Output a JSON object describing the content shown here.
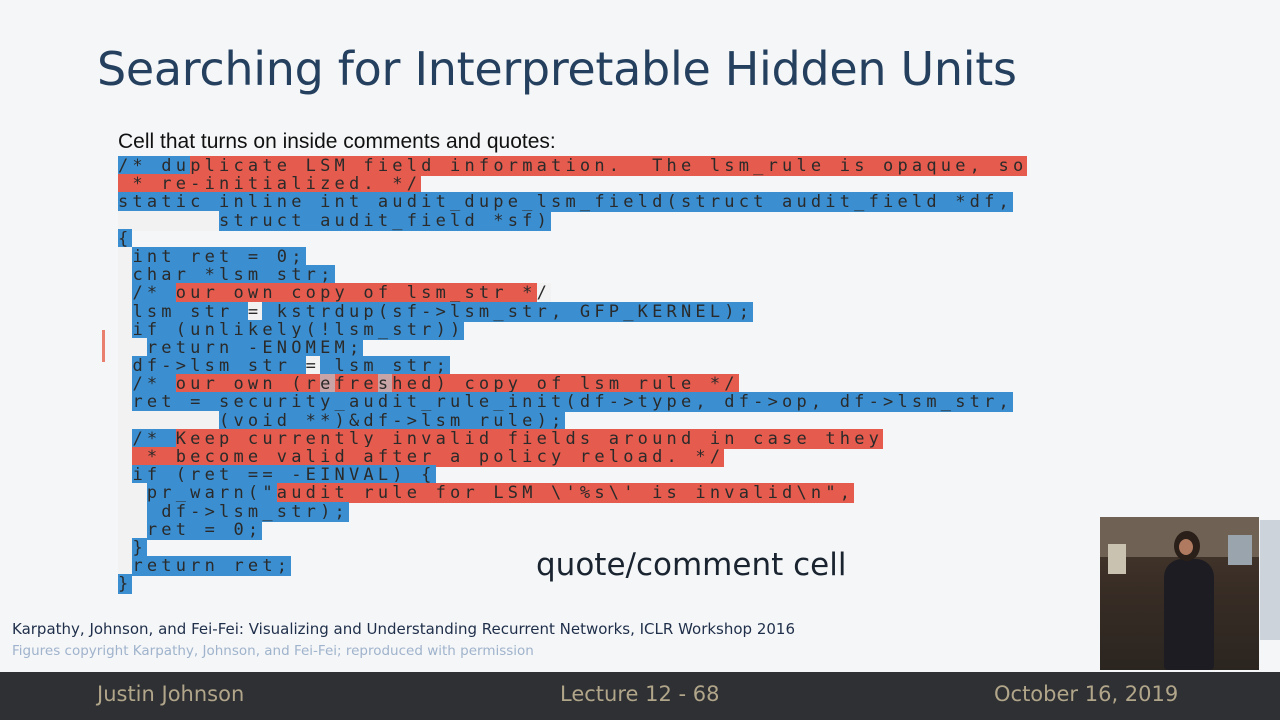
{
  "slide": {
    "title": "Searching for Interpretable Hidden Units",
    "caption": "Cell that turns on inside comments and quotes:",
    "cell_label": "quote/comment cell",
    "citation": "Karpathy, Johnson, and Fei-Fei: Visualizing and Understanding Recurrent Networks, ICLR Workshop 2016",
    "copyright": "Figures copyright Karpathy, Johnson, and Fei-Fei; reproduced with permission"
  },
  "code_lines": [
    [
      {
        "t": "/* du",
        "c": "b"
      },
      {
        "t": "plicate LSM field information.  The lsm_rule is opaque, so",
        "c": "r"
      }
    ],
    [
      {
        "t": " * re-initialized. */",
        "c": "r"
      }
    ],
    [
      {
        "t": "static inline int audit_dupe_lsm_field(struct audit_field *df,",
        "c": "b"
      }
    ],
    [
      {
        "t": "       ",
        "c": "w"
      },
      {
        "t": "struct audit_field *sf)",
        "c": "b"
      }
    ],
    [
      {
        "t": "{",
        "c": "b"
      }
    ],
    [
      {
        "t": " ",
        "c": "w"
      },
      {
        "t": "int ret = 0;",
        "c": "b"
      }
    ],
    [
      {
        "t": " ",
        "c": "w"
      },
      {
        "t": "char *lsm_str;",
        "c": "b"
      }
    ],
    [
      {
        "t": " ",
        "c": "w"
      },
      {
        "t": "/* ",
        "c": "b"
      },
      {
        "t": "our own copy of lsm_str *",
        "c": "r"
      },
      {
        "t": "/",
        "c": "w"
      }
    ],
    [
      {
        "t": " ",
        "c": "w"
      },
      {
        "t": "lsm_str ",
        "c": "b"
      },
      {
        "t": "=",
        "c": "w"
      },
      {
        "t": " kstrdup(sf->lsm_str, GFP_KERNEL);",
        "c": "b"
      }
    ],
    [
      {
        "t": " ",
        "c": "w"
      },
      {
        "t": "if (unlikely(!lsm_str))",
        "c": "b"
      }
    ],
    [
      {
        "t": "  ",
        "c": "w"
      },
      {
        "t": "return -ENOMEM;",
        "c": "b"
      }
    ],
    [
      {
        "t": " ",
        "c": "w"
      },
      {
        "t": "df->lsm_str ",
        "c": "b"
      },
      {
        "t": "=",
        "c": "w"
      },
      {
        "t": " lsm_str;",
        "c": "b"
      }
    ],
    [
      {
        "t": " ",
        "c": "w"
      },
      {
        "t": "/* ",
        "c": "b"
      },
      {
        "t": "our own (r",
        "c": "r"
      },
      {
        "t": "e",
        "c": "pl"
      },
      {
        "t": "fre",
        "c": "r"
      },
      {
        "t": "s",
        "c": "pl"
      },
      {
        "t": "hed) copy of lsm_rule */",
        "c": "r"
      }
    ],
    [
      {
        "t": " ",
        "c": "w"
      },
      {
        "t": "ret = security_audit_rule_init(df->type, df->op, df->lsm_str,",
        "c": "b"
      }
    ],
    [
      {
        "t": "       ",
        "c": "w"
      },
      {
        "t": "(void **)&df->lsm_rule);",
        "c": "b"
      }
    ],
    [
      {
        "t": " ",
        "c": "w"
      },
      {
        "t": "/* ",
        "c": "b"
      },
      {
        "t": "Keep currently invalid fields around in case they",
        "c": "r"
      }
    ],
    [
      {
        "t": " ",
        "c": "w"
      },
      {
        "t": " * become valid after a policy reload. */",
        "c": "r"
      }
    ],
    [
      {
        "t": " ",
        "c": "w"
      },
      {
        "t": "if (ret == -EINVAL) {",
        "c": "b"
      }
    ],
    [
      {
        "t": "  ",
        "c": "w"
      },
      {
        "t": "pr_warn(\"",
        "c": "b"
      },
      {
        "t": "audit rule for LSM \\'%s\\' is invalid\\n\",",
        "c": "r"
      }
    ],
    [
      {
        "t": "  ",
        "c": "w"
      },
      {
        "t": " df->lsm_str);",
        "c": "b"
      }
    ],
    [
      {
        "t": "  ",
        "c": "w"
      },
      {
        "t": "ret = 0;",
        "c": "b"
      }
    ],
    [
      {
        "t": " ",
        "c": "w"
      },
      {
        "t": "}",
        "c": "b"
      }
    ],
    [
      {
        "t": " ",
        "c": "w"
      },
      {
        "t": "return ",
        "c": "b"
      },
      {
        "t": "ret;",
        "c": "b"
      }
    ],
    [
      {
        "t": "}",
        "c": "b"
      }
    ]
  ],
  "footer": {
    "author": "Justin Johnson",
    "lecture": "Lecture 12 - 68",
    "date": "October 16, 2019"
  },
  "colors": {
    "active_cell": "#e55b4d",
    "inactive_cell": "#3b8fd1",
    "title": "#24405e",
    "footer_bg": "#2e3033",
    "footer_text": "#b1a58a"
  }
}
